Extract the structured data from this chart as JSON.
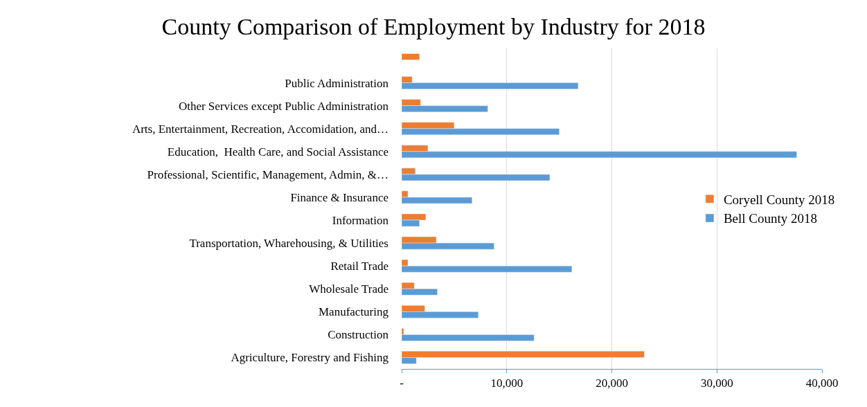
{
  "chart_data": {
    "type": "bar",
    "orientation": "horizontal",
    "title": "County Comparison of Employment by Industry for 2018",
    "categories": [
      null,
      "Public Administration",
      "Other Services except Public Administration",
      "Arts, Entertainment, Recreation, Accomidation, and…",
      "Education,  Health Care, and Social Assistance",
      "Professional, Scientific, Management, Admin, &…",
      "Finance & Insurance",
      "Information",
      "Transportation, Wharehousing, & Utilities",
      "Retail Trade",
      "Wholesale Trade",
      "Manufacturing",
      "Construction",
      "Agriculture, Forestry and Fishing"
    ],
    "series": [
      {
        "name": "Coryell County 2018",
        "color": "#ed7d31",
        "values": [
          1700,
          1000,
          1800,
          5000,
          2500,
          1300,
          600,
          2300,
          3300,
          600,
          1200,
          2200,
          200,
          23100
        ]
      },
      {
        "name": "Bell County 2018",
        "color": "#5b9bd5",
        "values": [
          null,
          16800,
          8200,
          15000,
          37600,
          14100,
          6700,
          1700,
          8800,
          16200,
          3400,
          7300,
          12600,
          1400
        ]
      }
    ],
    "xlim": [
      0,
      40000
    ],
    "xticks": [
      {
        "value": 0,
        "label": "-"
      },
      {
        "value": 10000,
        "label": "10,000"
      },
      {
        "value": 20000,
        "label": "20,000"
      },
      {
        "value": 30000,
        "label": "30,000"
      },
      {
        "value": 40000,
        "label": "40,000"
      }
    ],
    "grid": "x",
    "legend": "right"
  }
}
